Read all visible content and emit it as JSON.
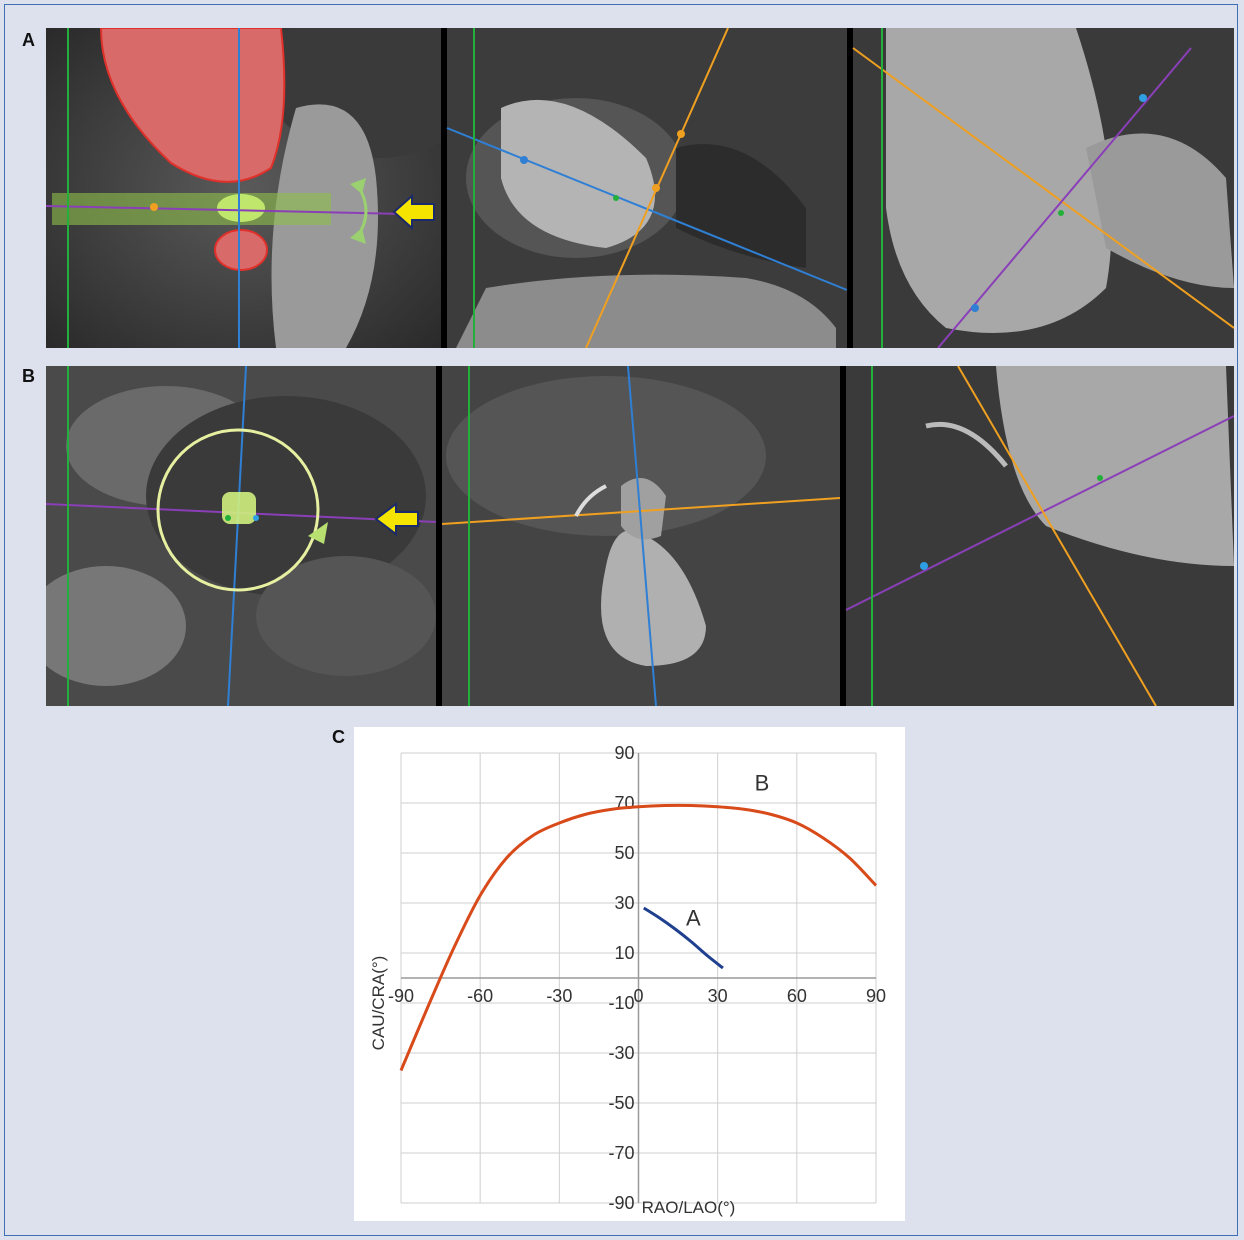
{
  "panels": {
    "a_label": "A",
    "b_label": "B",
    "c_label": "C"
  },
  "colors": {
    "background": "#dde1ee",
    "frame": "#3f6fb5",
    "blue_line": "#2f7fd4",
    "orange_line": "#f0a020",
    "purple_line": "#8a3fb8",
    "green_marker": "#22b03a",
    "red_roi": "#e0302a",
    "yellow_arrow": "#f4e400",
    "curve_a": "#1f3f8f",
    "curve_b": "#d84a1a"
  },
  "icons": [
    "yellow-arrow-icon",
    "rotate-arrows-icon",
    "rotation-circle-icon"
  ],
  "chart_data": {
    "type": "line",
    "xlabel": "RAO/LAO(°)",
    "ylabel": "CAU/CRA(°)",
    "xlim": [
      -90,
      90
    ],
    "ylim": [
      -90,
      90
    ],
    "x_ticks": [
      -90,
      -60,
      -30,
      0,
      30,
      60,
      90
    ],
    "x_tick_labels": [
      "-90",
      "-60",
      "-30",
      "0",
      "30",
      "60",
      "90"
    ],
    "y_ticks": [
      90,
      70,
      50,
      30,
      10,
      -10,
      -30,
      -50,
      -70,
      -90
    ],
    "y_tick_labels": [
      "90",
      "70",
      "50",
      "30",
      "10",
      "-10",
      "-30",
      "-50",
      "-70",
      "-90"
    ],
    "grid": true,
    "series": [
      {
        "name": "A",
        "color": "#1f3f8f",
        "x": [
          2,
          8,
          14,
          20,
          26,
          32
        ],
        "y": [
          28,
          24,
          19.5,
          14.5,
          9,
          4
        ]
      },
      {
        "name": "B",
        "color": "#d84a1a",
        "x": [
          -90,
          -80,
          -70,
          -60,
          -50,
          -40,
          -30,
          -20,
          -10,
          0,
          10,
          20,
          30,
          40,
          50,
          60,
          70,
          80,
          90
        ],
        "y": [
          -37,
          -12,
          12,
          33,
          48,
          57,
          62,
          65.5,
          67.5,
          68.5,
          69,
          69,
          68.5,
          67.5,
          65.5,
          62,
          56,
          48,
          37
        ]
      }
    ]
  }
}
